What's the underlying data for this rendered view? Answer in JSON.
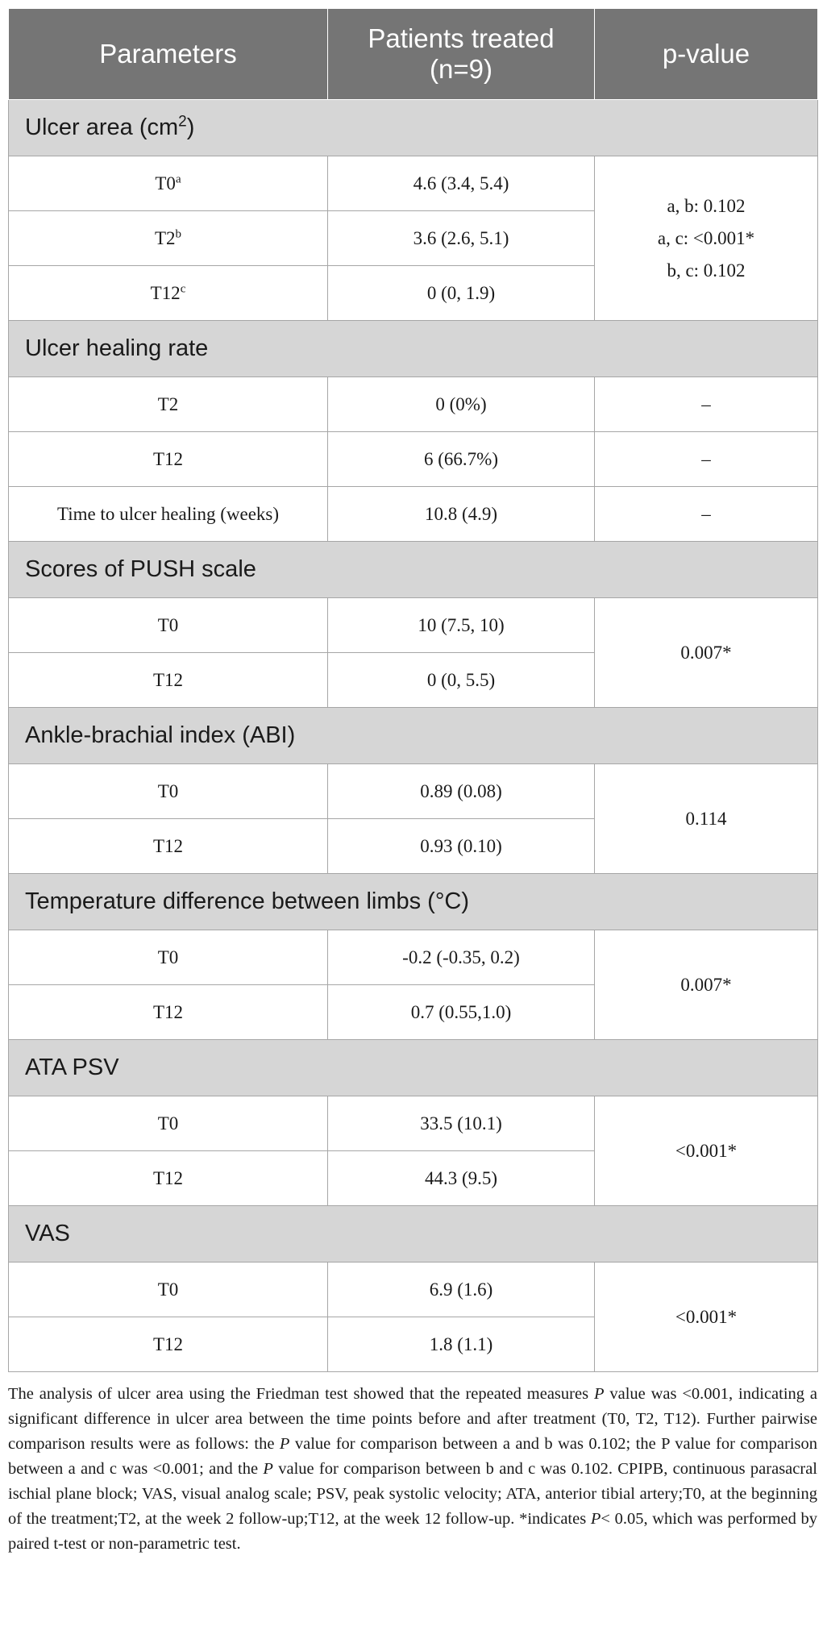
{
  "table": {
    "headers": [
      "Parameters",
      "Patients treated (n=9)",
      "p-value"
    ],
    "sections": [
      {
        "title": "Ulcer area (cm",
        "title_sup": "2",
        "title_end": ")",
        "rows": [
          {
            "label": "T0",
            "sup": "a",
            "value": "4.6 (3.4, 5.4)"
          },
          {
            "label": "T2",
            "sup": "b",
            "value": "3.6 (2.6, 5.1)"
          },
          {
            "label": "T12",
            "sup": "c",
            "value": "0 (0, 1.9)"
          }
        ],
        "p_lines": [
          "a, b: 0.102",
          "a, c: <0.001*",
          "b, c: 0.102"
        ]
      },
      {
        "title": "Ulcer healing rate",
        "rows": [
          {
            "label": "T2",
            "value": "0 (0%)",
            "p": "–"
          },
          {
            "label": "T12",
            "value": "6 (66.7%)",
            "p": "–"
          },
          {
            "label": "Time to ulcer healing (weeks)",
            "value": "10.8 (4.9)",
            "p": "–"
          }
        ]
      },
      {
        "title": "Scores of PUSH scale",
        "rows": [
          {
            "label": "T0",
            "value": "10 (7.5, 10)"
          },
          {
            "label": "T12",
            "value": "0 (0, 5.5)"
          }
        ],
        "p": "0.007*"
      },
      {
        "title": "Ankle-brachial index (ABI)",
        "rows": [
          {
            "label": "T0",
            "value": "0.89 (0.08)"
          },
          {
            "label": "T12",
            "value": "0.93 (0.10)"
          }
        ],
        "p": "0.114"
      },
      {
        "title": "Temperature difference between limbs (°C)",
        "rows": [
          {
            "label": "T0",
            "value": "-0.2 (-0.35, 0.2)"
          },
          {
            "label": "T12",
            "value": "0.7 (0.55,1.0)"
          }
        ],
        "p": "0.007*"
      },
      {
        "title": "ATA PSV",
        "rows": [
          {
            "label": "T0",
            "value": "33.5 (10.1)"
          },
          {
            "label": "T12",
            "value": "44.3 (9.5)"
          }
        ],
        "p": "<0.001*"
      },
      {
        "title": "VAS",
        "rows": [
          {
            "label": "T0",
            "value": "6.9 (1.6)"
          },
          {
            "label": "T12",
            "value": "1.8 (1.1)"
          }
        ],
        "p": "<0.001*"
      }
    ]
  },
  "footnote": {
    "t1": "The analysis of ulcer area using the Friedman test showed that the repeated measures ",
    "p1": "P",
    "t2": " value was <0.001, indicating a significant difference in ulcer area between the time points before and after treatment (T0, T2, T12). Further pairwise comparison results were as follows: the ",
    "p2": "P",
    "t3": " value for comparison between a and b was 0.102; the P value for comparison between a and c was <0.001; and the ",
    "p3": "P",
    "t4": " value for comparison between b and c was 0.102. CPIPB, continuous parasacral ischial plane block; VAS, visual analog scale; PSV, peak systolic velocity; ATA, anterior tibial artery;T0, at the beginning of the treatment;T2, at the week 2 follow-up;T12, at the week 12 follow-up. *indicates ",
    "p4": "P",
    "t5": "< 0.05, which was performed by paired t-test or non-parametric test."
  }
}
